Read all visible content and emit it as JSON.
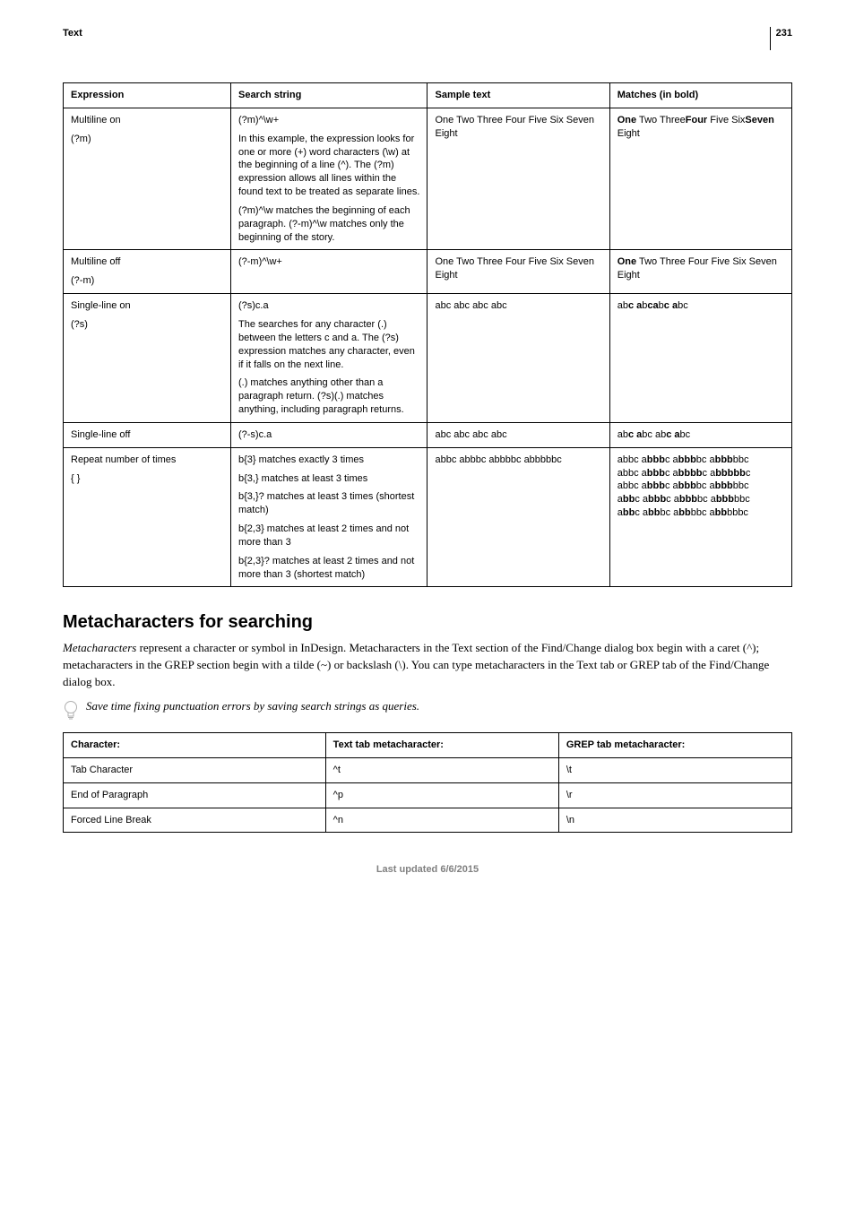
{
  "header": {
    "section_label": "Text",
    "page_number": "231"
  },
  "table1": {
    "headers": [
      "Expression",
      "Search string",
      "Sample text",
      "Matches (in bold)"
    ],
    "rows": [
      {
        "expression_lines": [
          "Multiline on",
          "(?m)"
        ],
        "search_intro": "(?m)^\\w+",
        "search_paragraphs": [
          "In this example, the expression looks for one or more (+) word characters (\\w) at the beginning of a line (^). The (?m) expression allows all lines within the found text to be treated as separate lines.",
          "(?m)^\\w matches the beginning of each paragraph. (?-m)^\\w matches only the beginning of the story."
        ],
        "sample": "One Two Three Four Five Six Seven Eight",
        "matches_html": "<b>One</b> Two Three<b>Four</b> Five Six<b>Seven</b> Eight"
      },
      {
        "expression_lines": [
          "Multiline off",
          "(?-m)"
        ],
        "search_intro": "(?-m)^\\w+",
        "search_paragraphs": [],
        "sample": "One Two Three Four Five Six Seven Eight",
        "matches_html": "<b>One</b> Two Three Four Five Six Seven Eight"
      },
      {
        "expression_lines": [
          "Single-line on",
          "(?s)"
        ],
        "search_intro": "(?s)c.a",
        "search_paragraphs": [
          "The searches for any character (.) between the letters c and a. The (?s) expression matches any character, even if it falls on the next line.",
          "(.) matches anything other than a paragraph return. (?s)(.) matches anything, including paragraph returns."
        ],
        "sample": "abc abc abc abc",
        "matches_html": "ab<b>c a</b>b<b>ca</b>b<b>c a</b>bc"
      },
      {
        "expression_lines": [
          "Single-line off"
        ],
        "search_intro": "(?-s)c.a",
        "search_paragraphs": [],
        "sample": "abc abc abc abc",
        "matches_html": "ab<b>c a</b>bc ab<b>c a</b>bc"
      },
      {
        "expression_lines": [
          "Repeat number of times",
          "{ }"
        ],
        "search_intro": "",
        "search_paragraphs": [
          "b{3} matches exactly 3 times",
          "b{3,} matches at least 3 times",
          "b{3,}? matches at least 3 times (shortest match)",
          "b{2,3} matches at least 2 times and not more than 3",
          "b{2,3}? matches at least 2 times and not more than 3 (shortest match)"
        ],
        "sample": "abbc abbbc abbbbc abbbbbc",
        "matches_html": "abbc a<b>bbb</b>c a<b>bbb</b>bc a<b>bbb</b>bbc<br>abbc a<b>bbb</b>c a<b>bbbb</b>c a<b>bbbbb</b>c<br>abbc a<b>bbb</b>c a<b>bbb</b>bc a<b>bbb</b>bbc<br>a<b>bb</b>c a<b>bbb</b>c a<b>bbb</b>bc a<b>bbb</b>bbc<br>a<b>bb</b>c a<b>bb</b>bc a<b>bb</b>bbc a<b>bb</b>bbbc"
      }
    ]
  },
  "section_heading": "Metacharacters for searching",
  "body_html": "<em>Metacharacters</em> represent a character or symbol in InDesign. Metacharacters in the Text section of the Find/Change dialog box begin with a caret (^); metacharacters in the GREP section begin with a tilde (~) or backslash (\\). You can type metacharacters in the Text tab or GREP tab of the Find/Change dialog box.",
  "tip_text": "Save time fixing punctuation errors by saving search strings as queries.",
  "table2": {
    "headers": [
      "Character:",
      "Text tab metacharacter:",
      "GREP tab metacharacter:"
    ],
    "rows": [
      [
        "Tab Character",
        "^t",
        "\\t"
      ],
      [
        "End of Paragraph",
        "^p",
        "\\r"
      ],
      [
        "Forced Line Break",
        "^n",
        "\\n"
      ]
    ]
  },
  "footer": "Last updated 6/6/2015"
}
